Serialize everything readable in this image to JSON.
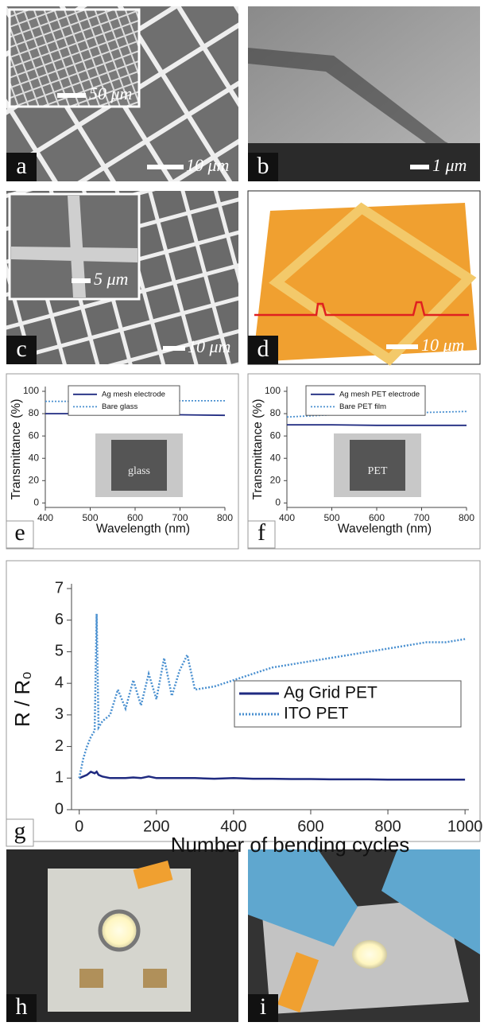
{
  "panels": {
    "a": {
      "label": "a",
      "scale_bar": "10 μm",
      "inset_scale_bar": "50 μm"
    },
    "b": {
      "label": "b",
      "scale_bar": "1 μm"
    },
    "c": {
      "label": "c",
      "scale_bar": "10 μm",
      "inset_scale_bar": "5 μm"
    },
    "d": {
      "label": "d",
      "scale_bar": "10 μm"
    },
    "h": {
      "label": "h"
    },
    "i": {
      "label": "i"
    }
  },
  "chart_data": [
    {
      "type": "line",
      "panel": "e",
      "annotations": [
        "glass"
      ],
      "x_label": "Wavelength (nm)",
      "y_label": "Transmittance (%)",
      "x": [
        400,
        500,
        600,
        700,
        800
      ],
      "series": [
        {
          "name": "Ag mesh electrode",
          "color": "#1f2a80",
          "style": "solid",
          "values": [
            80,
            80,
            79.5,
            79,
            78.5
          ]
        },
        {
          "name": "Bare glass",
          "color": "#4a90d0",
          "style": "dotted",
          "values": [
            91,
            91,
            91.5,
            91.5,
            91.5
          ]
        }
      ],
      "xlim": [
        400,
        800
      ],
      "xticks": [
        400,
        500,
        600,
        700,
        800
      ],
      "ylim": [
        -4,
        100
      ],
      "yticks": [
        0,
        20,
        40,
        60,
        80,
        100
      ],
      "legend": "upper center"
    },
    {
      "type": "line",
      "panel": "f",
      "annotations": [
        "PET"
      ],
      "x_label": "Wavelength (nm)",
      "y_label": "Transmittance (%)",
      "x": [
        400,
        500,
        600,
        700,
        800
      ],
      "series": [
        {
          "name": "Ag mesh PET electrode",
          "color": "#1f2a80",
          "style": "solid",
          "values": [
            70,
            70,
            69.5,
            69.5,
            69.5
          ]
        },
        {
          "name": "Bare PET film",
          "color": "#4a90d0",
          "style": "dotted",
          "values": [
            77,
            79,
            80,
            81,
            82
          ]
        }
      ],
      "xlim": [
        400,
        800
      ],
      "xticks": [
        400,
        500,
        600,
        700,
        800
      ],
      "ylim": [
        -4,
        100
      ],
      "yticks": [
        0,
        20,
        40,
        60,
        80,
        100
      ],
      "legend": "upper center"
    },
    {
      "type": "line",
      "panel": "g",
      "x_label": "Number of bending cycles",
      "y_label": "R / R₀",
      "x": [
        0,
        10,
        20,
        30,
        40,
        45,
        50,
        60,
        80,
        100,
        120,
        140,
        160,
        180,
        200,
        220,
        240,
        260,
        280,
        300,
        350,
        400,
        450,
        500,
        550,
        600,
        650,
        700,
        750,
        800,
        850,
        900,
        950,
        1000
      ],
      "series": [
        {
          "name": "Ag Grid PET",
          "color": "#1f2a80",
          "style": "solid",
          "values": [
            1.0,
            1.05,
            1.1,
            1.2,
            1.15,
            1.2,
            1.1,
            1.05,
            1.0,
            1.0,
            1.0,
            1.02,
            1.0,
            1.05,
            1.0,
            1.0,
            1.0,
            1.0,
            1.0,
            1.0,
            0.98,
            1.0,
            0.98,
            0.98,
            0.97,
            0.97,
            0.96,
            0.96,
            0.96,
            0.95,
            0.95,
            0.95,
            0.95,
            0.95
          ]
        },
        {
          "name": "ITO PET",
          "color": "#4a90d0",
          "style": "dotted",
          "values": [
            1.0,
            1.6,
            2.0,
            2.3,
            2.5,
            6.2,
            2.6,
            2.8,
            3.0,
            3.8,
            3.2,
            4.1,
            3.3,
            4.3,
            3.5,
            4.8,
            3.6,
            4.4,
            4.9,
            3.8,
            3.9,
            4.1,
            4.3,
            4.5,
            4.6,
            4.7,
            4.8,
            4.9,
            5.0,
            5.1,
            5.2,
            5.3,
            5.3,
            5.4
          ]
        }
      ],
      "xlim": [
        -20,
        1010
      ],
      "xticks": [
        0,
        200,
        400,
        600,
        800,
        1000
      ],
      "ylim": [
        0,
        7
      ],
      "yticks": [
        0,
        1,
        2,
        3,
        4,
        5,
        6,
        7
      ],
      "legend": "center right"
    }
  ]
}
